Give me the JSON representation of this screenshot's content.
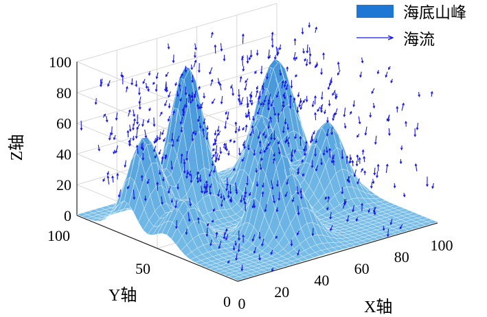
{
  "chart_data": {
    "type": "surface+quiver",
    "title": "",
    "xlabel": "X轴",
    "ylabel": "Y轴",
    "zlabel": "Z轴",
    "xlim": [
      0,
      100
    ],
    "ylim": [
      0,
      100
    ],
    "zlim": [
      0,
      100
    ],
    "x_ticks": [
      "0",
      "20",
      "40",
      "60",
      "80",
      "100"
    ],
    "y_ticks": [
      "0",
      "50",
      "100"
    ],
    "z_ticks": [
      "0",
      "20",
      "40",
      "60",
      "80",
      "100"
    ],
    "grid": true,
    "legend_position": "top-right",
    "legend": [
      {
        "label": "海底山峰",
        "kind": "patch",
        "color": "#1f77d4"
      },
      {
        "label": "海流",
        "kind": "arrow",
        "color": "#1515e6"
      }
    ],
    "surface_peaks": [
      {
        "x": 10,
        "y": 70,
        "height": 60,
        "width": 7
      },
      {
        "x": 10,
        "y": 45,
        "height": 30,
        "width": 7
      },
      {
        "x": 35,
        "y": 75,
        "height": 95,
        "width": 7
      },
      {
        "x": 40,
        "y": 30,
        "height": 60,
        "width": 6
      },
      {
        "x": 62,
        "y": 62,
        "height": 57,
        "width": 7
      },
      {
        "x": 45,
        "y": 20,
        "height": 30,
        "width": 7
      },
      {
        "x": 82,
        "y": 78,
        "height": 80,
        "width": 8
      },
      {
        "x": 85,
        "y": 50,
        "height": 50,
        "width": 7
      }
    ],
    "surface_color": "#4a9ad8",
    "arrow_color": "#1515e6"
  }
}
